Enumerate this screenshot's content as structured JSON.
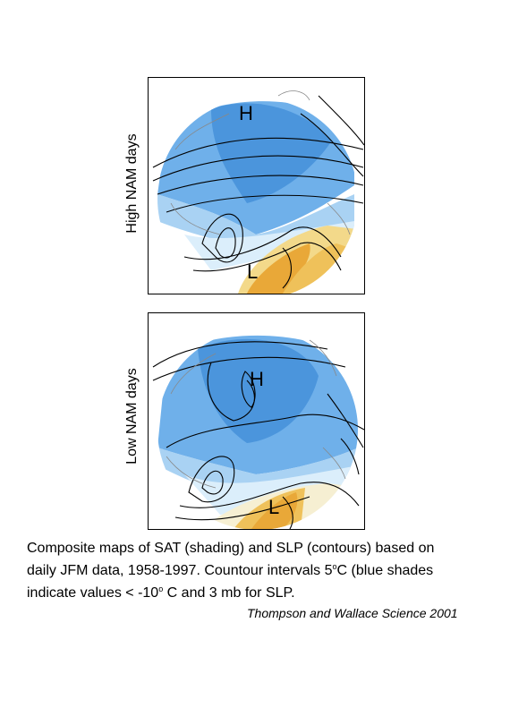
{
  "panels": [
    {
      "side_label": "High NAM days",
      "high_marker": "H",
      "low_marker": "L"
    },
    {
      "side_label": "Low NAM days",
      "high_marker": "H",
      "low_marker": "L"
    }
  ],
  "caption": {
    "line1": "Composite maps of SAT (shading) and SLP (contours) based on",
    "line2_pre": "daily JFM data, 1958-1997. Countour intervals 5",
    "degree1": "o",
    "line2_post": "C (blue shades",
    "line3_pre": "indicate values < -10",
    "degree2": "o",
    "line3_post": " C and 3 mb for SLP."
  },
  "credit": "Thompson and Wallace Science 2001",
  "colors": {
    "cold_dark": "#4b95dc",
    "cold_mid": "#6fb0ea",
    "cold_light": "#a9d2f3",
    "cool_pale": "#dbeefb",
    "warm_pale": "#f6efd2",
    "warm_light": "#f3d98a",
    "warm_mid": "#efc15a",
    "warm_dark": "#e9a838"
  }
}
